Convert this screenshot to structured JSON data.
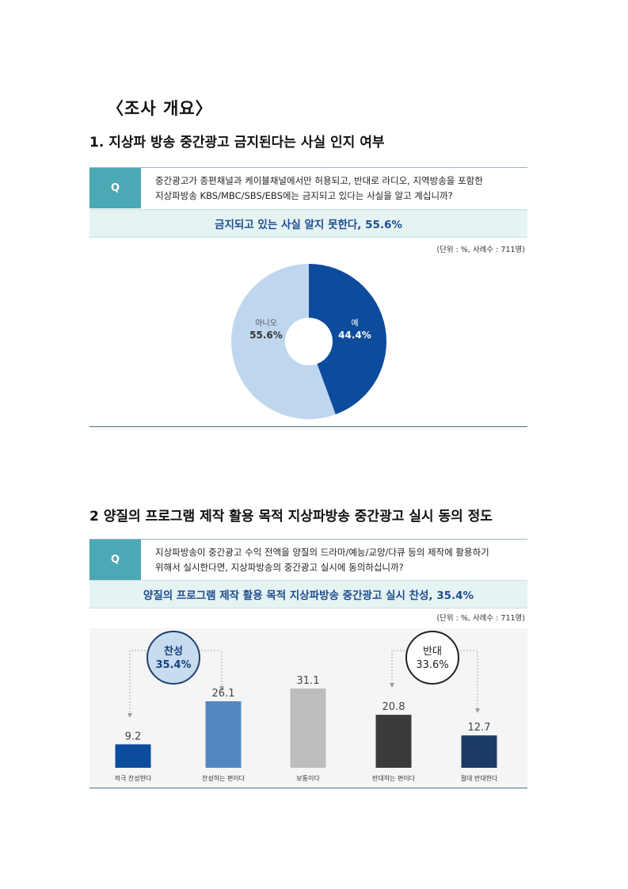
{
  "heading": "〈조사 개요〉",
  "section1": {
    "title": "1. 지상파 방송 중간광고 금지된다는 사실 인지 여부",
    "q_label": "Q",
    "question_line1": "중간광고가 종편채널과 케이블채널에서만 허용되고, 반대로 라디오, 지역방송을 포함한",
    "question_line2": "지상파방송 KBS/MBC/SBS/EBS에는 금지되고 있다는 사실을 알고 계십니까?",
    "answer": "금지되고 있는 사실 알지 못한다, 55.6%",
    "unit": "(단위 : %, 사례수 : 711명)",
    "chart_data": {
      "type": "pie",
      "donut": true,
      "slices": [
        {
          "label": "예",
          "value": 44.4,
          "value_label": "44.4%",
          "color": "#0d4b9c"
        },
        {
          "label": "아니오",
          "value": 55.6,
          "value_label": "55.6%",
          "color": "#bfd7ee"
        }
      ]
    }
  },
  "section2": {
    "title": "2 양질의 프로그램 제작 활용 목적 지상파방송 중간광고 실시 동의 정도",
    "q_label": "Q",
    "question_line1": "지상파방송이 중간광고 수익 전액을 양질의 드라마/예능/교양/다큐 등의 제작에 활용하기",
    "question_line2": "위해서 실시한다면, 지상파방송의 중간광고 실시에 동의하십니까?",
    "answer": "양질의 프로그램 제작 활용 목적 지상파방송 중간광고 실시 찬성, 35.4%",
    "unit": "(단위 : %, 사례수 : 711명)",
    "agree_bubble": {
      "label": "찬성",
      "value": "35.4%"
    },
    "disagree_bubble": {
      "label": "반대",
      "value": "33.6%"
    },
    "chart_data": {
      "type": "bar",
      "categories": [
        "적극 찬성한다",
        "찬성하는 편이다",
        "보통이다",
        "반대하는 편이다",
        "절대 반대한다"
      ],
      "values": [
        9.2,
        26.1,
        31.1,
        20.8,
        12.7
      ],
      "value_labels": [
        "9.2",
        "26.1",
        "31.1",
        "20.8",
        "12.7"
      ],
      "colors": [
        "#0d4b9c",
        "#5287c4",
        "#bdbdbd",
        "#3a3a3a",
        "#1b3a66"
      ],
      "ylim": [
        0,
        35
      ]
    }
  }
}
